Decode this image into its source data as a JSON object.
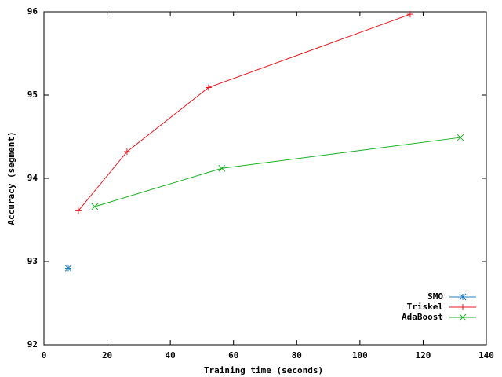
{
  "chart_data": {
    "type": "line",
    "xlabel": "Training time (seconds)",
    "ylabel": "Accuracy (segment)",
    "xlim": [
      0,
      140
    ],
    "xticks": [
      0,
      20,
      40,
      60,
      80,
      100,
      120,
      140
    ],
    "ylim": [
      92,
      96
    ],
    "yticks": [
      92,
      93,
      94,
      95,
      96
    ],
    "grid": false,
    "legend": "bottom-right",
    "series": [
      {
        "name": "SMO",
        "color": "#1f7fc0",
        "marker": "asterisk",
        "x": [
          7.7
        ],
        "values": [
          92.92
        ]
      },
      {
        "name": "Triskel",
        "color": "#e8161b",
        "marker": "plus",
        "x": [
          10.9,
          26.3,
          52.1,
          115.9
        ],
        "values": [
          93.61,
          94.32,
          95.09,
          95.97
        ]
      },
      {
        "name": "AdaBoost",
        "color": "#17b21e",
        "marker": "cross",
        "x": [
          16.1,
          56.3,
          131.8
        ],
        "values": [
          93.66,
          94.12,
          94.49
        ]
      }
    ]
  }
}
